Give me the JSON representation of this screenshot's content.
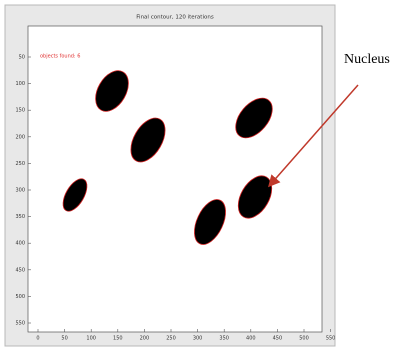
{
  "figure": {
    "title": "Final contour, 120 iterations",
    "annotation": "objects found: 6",
    "y_tick_labels": [
      "50",
      "100",
      "150",
      "200",
      "250",
      "300",
      "350",
      "400",
      "450",
      "500",
      "550"
    ],
    "x_tick_labels": [
      "0",
      "50",
      "100",
      "150",
      "200",
      "250",
      "300",
      "350",
      "400",
      "450",
      "500",
      "550"
    ]
  },
  "callout": {
    "label": "Nucleus"
  }
}
